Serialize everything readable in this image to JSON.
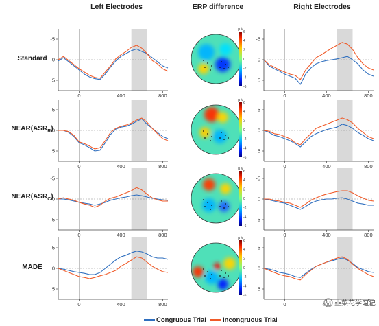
{
  "columns": [
    "Left Electrodes",
    "ERP difference",
    "Right Electrodes"
  ],
  "rows": [
    {
      "label": "Standard",
      "sub": ""
    },
    {
      "label": "NEAR(ASR",
      "sub": "R",
      "tail": ")"
    },
    {
      "label": "NEAR(ASR",
      "sub": "C",
      "tail": ")"
    },
    {
      "label": "MADE",
      "sub": ""
    }
  ],
  "legend": {
    "congruous": "Congruous Trial",
    "incongruous": "Incongruous Trial"
  },
  "colors": {
    "congruous": "#2f6fbf",
    "incongruous": "#f05a28",
    "shade": "#d9d9d9"
  },
  "watermark": "韭菜花学习记",
  "colorbar_label": "μ V",
  "chart_data": {
    "type": "line",
    "xticks": [
      0,
      400,
      800
    ],
    "yticks": [
      -5,
      0,
      5
    ],
    "xlim": [
      -200,
      850
    ],
    "ylim": [
      -7.5,
      7.5
    ],
    "y_inverted": true,
    "shaded_window": [
      500,
      650
    ],
    "colorbar_ticks": [
      6,
      4,
      2,
      0,
      -2,
      -4,
      -6
    ],
    "panels": [
      {
        "row": "Standard",
        "side": "left",
        "series": [
          {
            "name": "Congruous Trial",
            "x": [
              -200,
              -150,
              -100,
              -50,
              0,
              50,
              100,
              150,
              200,
              250,
              300,
              350,
              400,
              450,
              500,
              550,
              600,
              650,
              700,
              750,
              800,
              850
            ],
            "y": [
              0.3,
              -0.5,
              0.5,
              1.5,
              2.5,
              3.5,
              4.2,
              4.6,
              4.8,
              3.5,
              1.8,
              0.3,
              -0.8,
              -1.5,
              -2.2,
              -2.6,
              -2.0,
              -1.5,
              -0.5,
              0.5,
              1.5,
              2.0
            ]
          },
          {
            "name": "Incongruous Trial",
            "x": [
              -200,
              -150,
              -100,
              -50,
              0,
              50,
              100,
              150,
              200,
              250,
              300,
              350,
              400,
              450,
              500,
              550,
              600,
              650,
              700,
              750,
              800,
              850
            ],
            "y": [
              0,
              -0.8,
              0.2,
              1.2,
              2.2,
              3.0,
              3.8,
              4.3,
              4.5,
              3.0,
              1.5,
              -0.2,
              -1.2,
              -2.0,
              -3.0,
              -3.5,
              -2.8,
              -1.5,
              0.2,
              1.0,
              2.2,
              2.8
            ]
          }
        ]
      },
      {
        "row": "Standard",
        "side": "right",
        "series": [
          {
            "name": "Congruous Trial",
            "x": [
              -200,
              -150,
              -100,
              -50,
              0,
              50,
              100,
              150,
              200,
              250,
              300,
              350,
              400,
              450,
              500,
              550,
              600,
              650,
              700,
              750,
              800,
              850
            ],
            "y": [
              0,
              1.5,
              2.2,
              2.8,
              3.5,
              4.0,
              4.5,
              6.0,
              3.5,
              2.0,
              1.0,
              0.5,
              0.2,
              0,
              -0.2,
              -0.5,
              -0.8,
              0,
              1.0,
              2.5,
              3.5,
              4.0
            ]
          },
          {
            "name": "Incongruous Trial",
            "x": [
              -200,
              -150,
              -100,
              -50,
              0,
              50,
              100,
              150,
              200,
              250,
              300,
              350,
              400,
              450,
              500,
              550,
              600,
              650,
              700,
              750,
              800,
              850
            ],
            "y": [
              0,
              1.2,
              1.8,
              2.5,
              3.0,
              3.5,
              3.8,
              4.8,
              2.5,
              1.0,
              -0.5,
              -1.2,
              -2.0,
              -2.8,
              -3.5,
              -4.2,
              -3.8,
              -2.5,
              -0.5,
              1.0,
              2.0,
              2.5
            ]
          }
        ]
      },
      {
        "row": "NEAR(ASR_R)",
        "side": "left",
        "series": [
          {
            "name": "Congruous Trial",
            "x": [
              -200,
              -150,
              -100,
              -50,
              0,
              50,
              100,
              150,
              200,
              250,
              300,
              350,
              400,
              450,
              500,
              550,
              600,
              650,
              700,
              750,
              800,
              850
            ],
            "y": [
              0,
              0,
              0.5,
              1.5,
              3.0,
              3.5,
              4.2,
              5.0,
              4.8,
              3.0,
              1.0,
              -0.3,
              -0.8,
              -1.0,
              -1.5,
              -2.2,
              -2.8,
              -1.5,
              -0.5,
              0.5,
              1.5,
              2.0
            ]
          },
          {
            "name": "Incongruous Trial",
            "x": [
              -200,
              -150,
              -100,
              -50,
              0,
              50,
              100,
              150,
              200,
              250,
              300,
              350,
              400,
              450,
              500,
              550,
              600,
              650,
              700,
              750,
              800,
              850
            ],
            "y": [
              0,
              0,
              0.3,
              1.2,
              2.8,
              3.2,
              3.8,
              4.5,
              4.2,
              2.5,
              0.5,
              -0.5,
              -1.0,
              -1.3,
              -1.8,
              -2.5,
              -3.0,
              -2.0,
              -0.5,
              0.8,
              2.0,
              2.5
            ]
          }
        ]
      },
      {
        "row": "NEAR(ASR_R)",
        "side": "right",
        "series": [
          {
            "name": "Congruous Trial",
            "x": [
              -200,
              -150,
              -100,
              -50,
              0,
              50,
              100,
              150,
              200,
              250,
              300,
              350,
              400,
              450,
              500,
              550,
              600,
              650,
              700,
              750,
              800,
              850
            ],
            "y": [
              0,
              0.5,
              1.2,
              1.5,
              2.0,
              2.5,
              3.2,
              4.0,
              2.8,
              1.5,
              0.8,
              0.3,
              -0.2,
              -0.5,
              -0.8,
              -1.5,
              -1.2,
              -0.5,
              0.5,
              1.2,
              2.0,
              2.5
            ]
          },
          {
            "name": "Incongruous Trial",
            "x": [
              -200,
              -150,
              -100,
              -50,
              0,
              50,
              100,
              150,
              200,
              250,
              300,
              350,
              400,
              450,
              500,
              550,
              600,
              650,
              700,
              750,
              800,
              850
            ],
            "y": [
              0,
              0.2,
              0.8,
              1.0,
              1.5,
              2.0,
              3.0,
              3.5,
              2.0,
              0.8,
              -0.5,
              -1.0,
              -1.5,
              -2.0,
              -2.5,
              -3.0,
              -2.6,
              -1.8,
              -0.5,
              0.5,
              1.5,
              2.0
            ]
          }
        ]
      },
      {
        "row": "NEAR(ASR_C)",
        "side": "left",
        "series": [
          {
            "name": "Congruous Trial",
            "x": [
              -200,
              -150,
              -100,
              -50,
              0,
              50,
              100,
              150,
              200,
              250,
              300,
              350,
              400,
              450,
              500,
              550,
              600,
              650,
              700,
              750,
              800,
              850
            ],
            "y": [
              0,
              0,
              0.2,
              0.5,
              0.8,
              1.0,
              1.2,
              1.5,
              1.2,
              0.8,
              0.3,
              0,
              -0.3,
              -0.5,
              -0.8,
              -1.0,
              -0.8,
              -0.5,
              -0.2,
              0,
              0.2,
              0.3
            ]
          },
          {
            "name": "Incongruous Trial",
            "x": [
              -200,
              -150,
              -100,
              -50,
              0,
              50,
              100,
              150,
              200,
              250,
              300,
              350,
              400,
              450,
              500,
              550,
              600,
              650,
              700,
              750,
              800,
              850
            ],
            "y": [
              0,
              -0.3,
              0,
              0.3,
              0.8,
              1.2,
              1.5,
              2.0,
              1.5,
              0.5,
              -0.2,
              -0.5,
              -1.0,
              -1.5,
              -2.0,
              -2.8,
              -2.2,
              -1.2,
              -0.3,
              0.2,
              0.5,
              0.5
            ]
          }
        ]
      },
      {
        "row": "NEAR(ASR_C)",
        "side": "right",
        "series": [
          {
            "name": "Congruous Trial",
            "x": [
              -200,
              -150,
              -100,
              -50,
              0,
              50,
              100,
              150,
              200,
              250,
              300,
              350,
              400,
              450,
              500,
              550,
              600,
              650,
              700,
              750,
              800,
              850
            ],
            "y": [
              0,
              0.2,
              0.5,
              0.8,
              1.0,
              1.5,
              2.0,
              2.5,
              1.8,
              1.0,
              0.5,
              0.2,
              0,
              0,
              -0.2,
              -0.3,
              0,
              0.5,
              1.0,
              1.2,
              1.5,
              1.5
            ]
          },
          {
            "name": "Incongruous Trial",
            "x": [
              -200,
              -150,
              -100,
              -50,
              0,
              50,
              100,
              150,
              200,
              250,
              300,
              350,
              400,
              450,
              500,
              550,
              600,
              650,
              700,
              750,
              800,
              850
            ],
            "y": [
              0,
              0,
              0.3,
              0.5,
              0.8,
              1.0,
              1.5,
              2.0,
              1.2,
              0.3,
              -0.3,
              -0.8,
              -1.2,
              -1.5,
              -1.8,
              -2.0,
              -2.0,
              -1.5,
              -0.8,
              -0.2,
              0.3,
              0.5
            ]
          }
        ]
      },
      {
        "row": "MADE",
        "side": "left",
        "series": [
          {
            "name": "Congruous Trial",
            "x": [
              -200,
              -150,
              -100,
              -50,
              0,
              50,
              100,
              150,
              200,
              250,
              300,
              350,
              400,
              450,
              500,
              550,
              600,
              650,
              700,
              750,
              800,
              850
            ],
            "y": [
              0,
              0.2,
              0.5,
              0.8,
              1.0,
              1.2,
              1.5,
              1.5,
              1.0,
              0,
              -1.0,
              -2.0,
              -2.8,
              -3.2,
              -3.8,
              -4.2,
              -4.0,
              -3.5,
              -2.8,
              -2.5,
              -2.5,
              -2.2
            ]
          },
          {
            "name": "Incongruous Trial",
            "x": [
              -200,
              -150,
              -100,
              -50,
              0,
              50,
              100,
              150,
              200,
              250,
              300,
              350,
              400,
              450,
              500,
              550,
              600,
              650,
              700,
              750,
              800,
              850
            ],
            "y": [
              0,
              0.5,
              1.0,
              1.5,
              2.0,
              2.2,
              2.5,
              2.2,
              1.8,
              1.5,
              1.0,
              0.5,
              -0.5,
              -1.2,
              -2.0,
              -2.8,
              -2.5,
              -1.5,
              -0.5,
              0.2,
              0.8,
              1.0
            ]
          }
        ]
      },
      {
        "row": "MADE",
        "side": "right",
        "series": [
          {
            "name": "Congruous Trial",
            "x": [
              -200,
              -150,
              -100,
              -50,
              0,
              50,
              100,
              150,
              200,
              250,
              300,
              350,
              400,
              450,
              500,
              550,
              600,
              650,
              700,
              750,
              800,
              850
            ],
            "y": [
              0,
              0.2,
              0.5,
              1.0,
              1.2,
              1.5,
              2.0,
              2.2,
              1.2,
              0.3,
              -0.5,
              -1.0,
              -1.5,
              -1.8,
              -2.2,
              -2.5,
              -2.0,
              -1.2,
              -0.2,
              0.3,
              0.8,
              1.0
            ]
          },
          {
            "name": "Incongruous Trial",
            "x": [
              -200,
              -150,
              -100,
              -50,
              0,
              50,
              100,
              150,
              200,
              250,
              300,
              350,
              400,
              450,
              500,
              550,
              600,
              650,
              700,
              750,
              800,
              850
            ],
            "y": [
              0,
              0.5,
              1.0,
              1.5,
              1.8,
              2.0,
              2.5,
              2.8,
              1.5,
              0.5,
              -0.5,
              -1.0,
              -1.5,
              -2.0,
              -2.5,
              -2.8,
              -2.2,
              -1.0,
              0,
              0.8,
              1.5,
              2.0
            ]
          }
        ]
      }
    ]
  }
}
